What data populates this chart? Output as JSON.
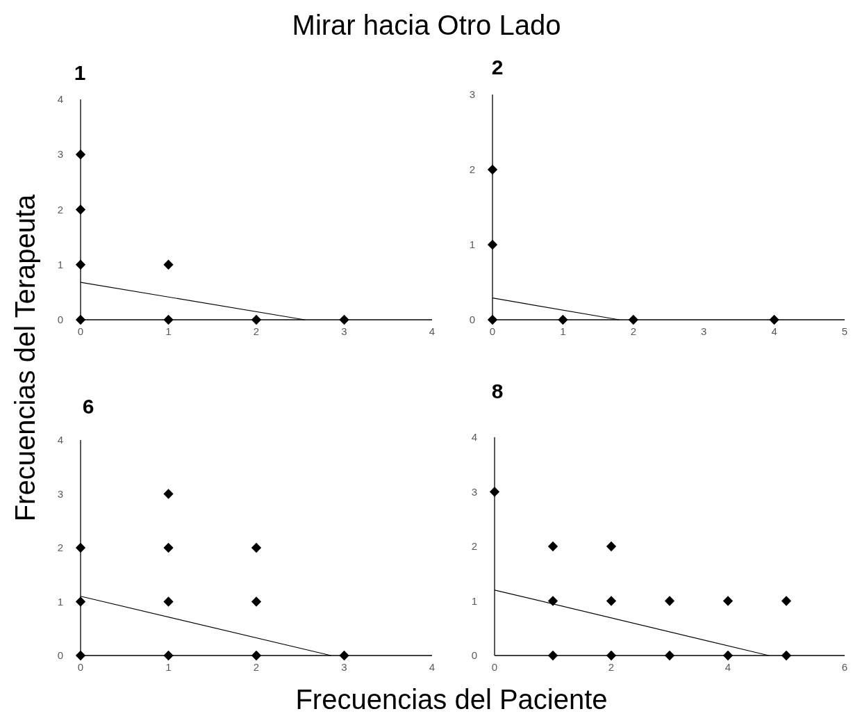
{
  "chart_data": [
    {
      "type": "scatter",
      "title": "1",
      "annotations": [
        "Mirar hacia Otro Lado"
      ],
      "ylabel": "Frecuencias del Terapeuta",
      "xlim": [
        0,
        4
      ],
      "xticks": [
        0,
        1,
        2,
        3,
        4
      ],
      "ylim": [
        0,
        4
      ],
      "yticks": [
        0,
        1,
        2,
        3,
        4
      ],
      "grid": false,
      "series": [
        {
          "marker": "diamond",
          "color": "#000000",
          "x": [
            0,
            0,
            0,
            0,
            1,
            1,
            2,
            3
          ],
          "values": [
            0,
            1,
            2,
            3,
            0,
            1,
            0,
            0
          ]
        },
        {
          "type": "line",
          "marker": "none",
          "color": "#000000",
          "x": [
            0,
            2.55
          ],
          "values": [
            0.68,
            0
          ]
        }
      ]
    },
    {
      "type": "scatter",
      "title": "2",
      "xlim": [
        0,
        5
      ],
      "xticks": [
        0,
        1,
        2,
        3,
        4,
        5
      ],
      "ylim": [
        0,
        3
      ],
      "yticks": [
        0,
        1,
        2,
        3
      ],
      "grid": false,
      "series": [
        {
          "marker": "diamond",
          "color": "#000000",
          "x": [
            0,
            0,
            0,
            1,
            2,
            4
          ],
          "values": [
            0,
            1,
            2,
            0,
            0,
            0
          ]
        },
        {
          "type": "line",
          "marker": "none",
          "color": "#000000",
          "x": [
            0,
            1.8
          ],
          "values": [
            0.29,
            0
          ]
        }
      ]
    },
    {
      "type": "scatter",
      "title": "6",
      "xlim": [
        0,
        4
      ],
      "xticks": [
        0,
        1,
        2,
        3,
        4
      ],
      "ylim": [
        0,
        4
      ],
      "yticks": [
        0,
        1,
        2,
        3,
        4
      ],
      "grid": false,
      "series": [
        {
          "marker": "diamond",
          "color": "#000000",
          "x": [
            0,
            0,
            0,
            1,
            1,
            1,
            1,
            2,
            2,
            2,
            3
          ],
          "values": [
            0,
            1,
            2,
            0,
            1,
            2,
            3,
            0,
            1,
            2,
            0
          ]
        },
        {
          "type": "line",
          "marker": "none",
          "color": "#000000",
          "x": [
            0,
            2.85
          ],
          "values": [
            1.1,
            0
          ]
        }
      ]
    },
    {
      "type": "scatter",
      "title": "8",
      "xlabel": "Frecuencias del Paciente",
      "xlim": [
        0,
        6
      ],
      "xticks": [
        0,
        2,
        4,
        6
      ],
      "ylim": [
        0,
        4
      ],
      "yticks": [
        0,
        1,
        2,
        3,
        4
      ],
      "grid": false,
      "series": [
        {
          "marker": "diamond",
          "color": "#000000",
          "x": [
            0,
            1,
            1,
            1,
            2,
            2,
            2,
            3,
            3,
            4,
            4,
            5,
            5
          ],
          "values": [
            3,
            0,
            1,
            2,
            0,
            1,
            2,
            0,
            1,
            0,
            1,
            0,
            1
          ]
        },
        {
          "type": "line",
          "marker": "none",
          "color": "#000000",
          "x": [
            0,
            4.7
          ],
          "values": [
            1.2,
            0
          ]
        }
      ]
    }
  ]
}
